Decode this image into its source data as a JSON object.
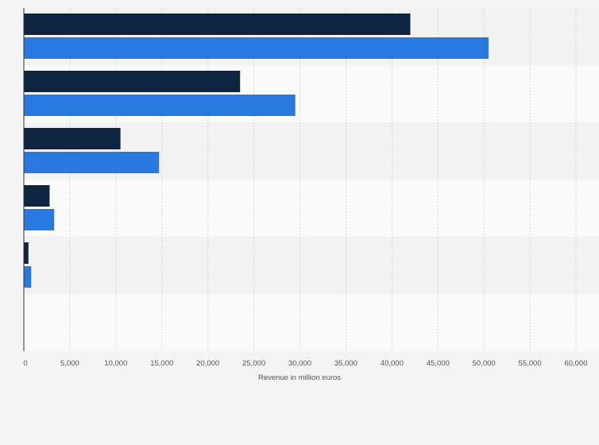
{
  "chart_data": {
    "type": "bar",
    "orientation": "horizontal",
    "categories": [
      "",
      "",
      "",
      "",
      "",
      ""
    ],
    "series": [
      {
        "color": "#0d2540",
        "values": [
          42000,
          23500,
          10500,
          2800,
          500,
          0
        ]
      },
      {
        "color": "#2878e0",
        "values": [
          50500,
          29500,
          14700,
          3300,
          800,
          0
        ]
      }
    ],
    "xlabel": "Revenue in million euros",
    "ylabel": "",
    "xlim": [
      0,
      60000
    ],
    "x_ticks": [
      "0",
      "5,000",
      "10,000",
      "15,000",
      "20,000",
      "25,000",
      "30,000",
      "35,000",
      "40,000",
      "45,000",
      "50,000",
      "55,000",
      "60,000"
    ],
    "grid": true,
    "legend": "none"
  }
}
